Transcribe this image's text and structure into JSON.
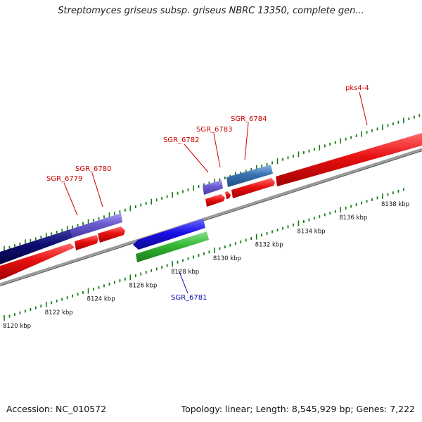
{
  "title": "Streptomyces griseus subsp. griseus NBRC 13350, complete gen...",
  "footer": {
    "accession": "Accession: NC_010572",
    "summary": "Topology: linear; Length: 8,545,929 bp; Genes: 7,222"
  },
  "colors": {
    "forward_cds": "#e01010",
    "reverse_cds": "#1a10e0",
    "rna": "#30b030",
    "dark_feature": "#0c0c70",
    "light_feature": "#6a5ad0",
    "steel_feature": "#3a72b0",
    "backbone": "#888888",
    "tick": "#1a7a1a",
    "forward_label": "#cc0000",
    "reverse_label": "#0000aa"
  },
  "axis_ticks": [
    {
      "label": "8120 kbp",
      "pos": 8120
    },
    {
      "label": "8122 kbp",
      "pos": 8122
    },
    {
      "label": "8124 kbp",
      "pos": 8124
    },
    {
      "label": "8126 kbp",
      "pos": 8126
    },
    {
      "label": "8128 kbp",
      "pos": 8128
    },
    {
      "label": "8130 kbp",
      "pos": 8130
    },
    {
      "label": "8132 kbp",
      "pos": 8132
    },
    {
      "label": "8134 kbp",
      "pos": 8134
    },
    {
      "label": "8136 kbp",
      "pos": 8136
    },
    {
      "label": "8138 kbp",
      "pos": 8138
    }
  ],
  "gene_labels": [
    {
      "text": "SGR_6779",
      "strand": "forward"
    },
    {
      "text": "SGR_6780",
      "strand": "forward"
    },
    {
      "text": "SGR_6781",
      "strand": "reverse"
    },
    {
      "text": "SGR_6782",
      "strand": "forward"
    },
    {
      "text": "SGR_6783",
      "strand": "forward"
    },
    {
      "text": "SGR_6784",
      "strand": "forward"
    },
    {
      "text": "pks4-4",
      "strand": "forward"
    }
  ]
}
